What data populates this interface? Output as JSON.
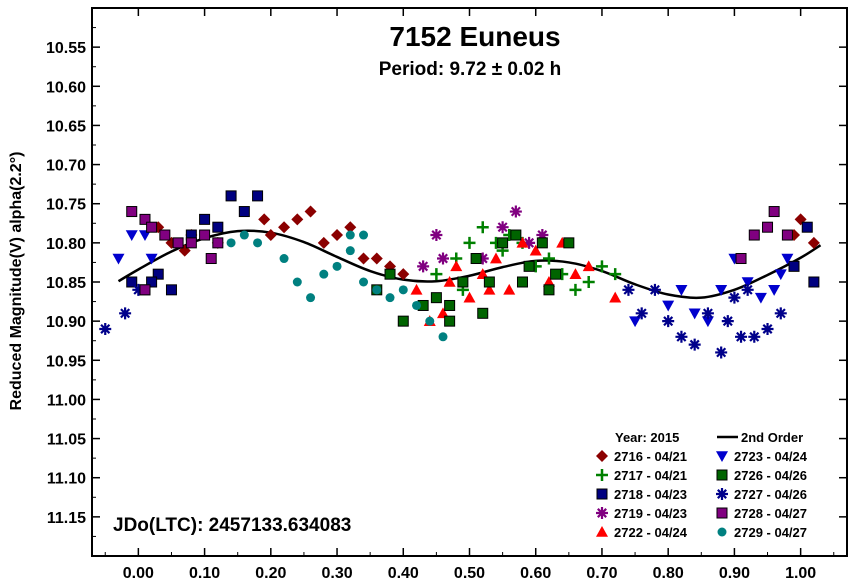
{
  "chart_data": {
    "type": "scatter",
    "title": "7152 Euneus",
    "subtitle": "Period: 9.72 ± 0.02 h",
    "ylabel": "Reduced Magnitude(V) alpha(2.2°)",
    "xlabel": "",
    "annotation": "JDo(LTC): 2457133.634083",
    "xlim": [
      -0.07,
      1.07
    ],
    "ylim": [
      10.5,
      11.2
    ],
    "y_inverted": true,
    "grid": false,
    "x_ticks": [
      "0.00",
      "0.10",
      "0.20",
      "0.30",
      "0.40",
      "0.50",
      "0.60",
      "0.70",
      "0.80",
      "0.90",
      "1.00"
    ],
    "y_ticks": [
      "10.55",
      "10.60",
      "10.65",
      "10.70",
      "10.75",
      "10.80",
      "10.85",
      "10.90",
      "10.95",
      "11.00",
      "11.05",
      "11.10",
      "11.15"
    ],
    "legend_title": "Year: 2015",
    "legend_placement": "bottom-right",
    "fit": {
      "name": "2nd Order",
      "points": [
        [
          -0.03,
          10.849
        ],
        [
          0.0,
          10.834
        ],
        [
          0.05,
          10.811
        ],
        [
          0.1,
          10.794
        ],
        [
          0.15,
          10.785
        ],
        [
          0.2,
          10.787
        ],
        [
          0.25,
          10.799
        ],
        [
          0.3,
          10.818
        ],
        [
          0.35,
          10.836
        ],
        [
          0.4,
          10.847
        ],
        [
          0.45,
          10.849
        ],
        [
          0.5,
          10.842
        ],
        [
          0.55,
          10.831
        ],
        [
          0.6,
          10.823
        ],
        [
          0.65,
          10.825
        ],
        [
          0.7,
          10.836
        ],
        [
          0.75,
          10.853
        ],
        [
          0.8,
          10.866
        ],
        [
          0.85,
          10.87
        ],
        [
          0.9,
          10.86
        ],
        [
          0.95,
          10.841
        ],
        [
          1.0,
          10.819
        ],
        [
          1.03,
          10.803
        ]
      ]
    },
    "series": [
      {
        "name": "2716 - 04/21",
        "marker": "diamond",
        "color": "#8b0000",
        "points": [
          [
            0.03,
            10.78
          ],
          [
            0.05,
            10.8
          ],
          [
            0.07,
            10.81
          ],
          [
            0.08,
            10.79
          ],
          [
            0.12,
            10.8
          ],
          [
            0.19,
            10.77
          ],
          [
            0.2,
            10.79
          ],
          [
            0.22,
            10.78
          ],
          [
            0.24,
            10.77
          ],
          [
            0.26,
            10.76
          ],
          [
            0.28,
            10.8
          ],
          [
            0.3,
            10.79
          ],
          [
            0.32,
            10.78
          ],
          [
            0.34,
            10.82
          ],
          [
            0.36,
            10.82
          ],
          [
            0.38,
            10.83
          ],
          [
            0.4,
            10.84
          ],
          [
            0.99,
            10.79
          ],
          [
            1.0,
            10.77
          ],
          [
            1.02,
            10.8
          ]
        ]
      },
      {
        "name": "2717 - 04/21",
        "marker": "plus",
        "color": "#008000",
        "points": [
          [
            0.45,
            10.84
          ],
          [
            0.48,
            10.82
          ],
          [
            0.5,
            10.8
          ],
          [
            0.52,
            10.78
          ],
          [
            0.54,
            10.8
          ],
          [
            0.56,
            10.79
          ],
          [
            0.58,
            10.8
          ],
          [
            0.6,
            10.83
          ],
          [
            0.62,
            10.82
          ],
          [
            0.64,
            10.84
          ],
          [
            0.66,
            10.86
          ],
          [
            0.68,
            10.85
          ],
          [
            0.7,
            10.83
          ],
          [
            0.72,
            10.84
          ],
          [
            0.49,
            10.86
          ],
          [
            0.55,
            10.81
          ]
        ]
      },
      {
        "name": "2718 - 04/23",
        "marker": "square",
        "color": "#000080",
        "points": [
          [
            -0.01,
            10.85
          ],
          [
            0.01,
            10.86
          ],
          [
            0.03,
            10.84
          ],
          [
            0.05,
            10.86
          ],
          [
            0.08,
            10.79
          ],
          [
            0.1,
            10.77
          ],
          [
            0.12,
            10.78
          ],
          [
            0.14,
            10.74
          ],
          [
            0.16,
            10.76
          ],
          [
            0.18,
            10.74
          ],
          [
            0.02,
            10.85
          ],
          [
            0.99,
            10.83
          ],
          [
            1.01,
            10.78
          ],
          [
            1.02,
            10.85
          ]
        ]
      },
      {
        "name": "2719 - 04/23",
        "marker": "star",
        "color": "#800080",
        "points": [
          [
            0.43,
            10.83
          ],
          [
            0.45,
            10.79
          ],
          [
            0.46,
            10.82
          ],
          [
            0.52,
            10.82
          ],
          [
            0.55,
            10.78
          ],
          [
            0.57,
            10.76
          ],
          [
            0.59,
            10.8
          ],
          [
            0.61,
            10.79
          ]
        ]
      },
      {
        "name": "2722 - 04/24",
        "marker": "triangle",
        "color": "#ff0000",
        "points": [
          [
            0.42,
            10.86
          ],
          [
            0.44,
            10.9
          ],
          [
            0.46,
            10.89
          ],
          [
            0.48,
            10.83
          ],
          [
            0.5,
            10.87
          ],
          [
            0.52,
            10.84
          ],
          [
            0.54,
            10.82
          ],
          [
            0.56,
            10.86
          ],
          [
            0.58,
            10.8
          ],
          [
            0.6,
            10.81
          ],
          [
            0.62,
            10.85
          ],
          [
            0.64,
            10.8
          ],
          [
            0.66,
            10.84
          ],
          [
            0.68,
            10.83
          ],
          [
            0.72,
            10.87
          ],
          [
            0.47,
            10.85
          ],
          [
            0.53,
            10.86
          ]
        ]
      },
      {
        "name": "2723 - 04/24",
        "marker": "triangle-down",
        "color": "#0000cd",
        "points": [
          [
            -0.03,
            10.82
          ],
          [
            -0.01,
            10.79
          ],
          [
            0.01,
            10.79
          ],
          [
            0.02,
            10.82
          ],
          [
            0.75,
            10.9
          ],
          [
            0.8,
            10.88
          ],
          [
            0.82,
            10.86
          ],
          [
            0.84,
            10.89
          ],
          [
            0.86,
            10.9
          ],
          [
            0.88,
            10.86
          ],
          [
            0.9,
            10.82
          ],
          [
            0.92,
            10.85
          ],
          [
            0.94,
            10.87
          ],
          [
            0.96,
            10.86
          ],
          [
            0.97,
            10.84
          ],
          [
            0.98,
            10.82
          ]
        ]
      },
      {
        "name": "2726 - 04/26",
        "marker": "square",
        "color": "#006400",
        "points": [
          [
            0.36,
            10.86
          ],
          [
            0.38,
            10.84
          ],
          [
            0.4,
            10.9
          ],
          [
            0.43,
            10.88
          ],
          [
            0.45,
            10.87
          ],
          [
            0.47,
            10.88
          ],
          [
            0.49,
            10.85
          ],
          [
            0.51,
            10.82
          ],
          [
            0.53,
            10.85
          ],
          [
            0.55,
            10.8
          ],
          [
            0.57,
            10.79
          ],
          [
            0.59,
            10.83
          ],
          [
            0.61,
            10.8
          ],
          [
            0.63,
            10.84
          ],
          [
            0.65,
            10.8
          ],
          [
            0.47,
            10.9
          ],
          [
            0.52,
            10.89
          ],
          [
            0.58,
            10.85
          ],
          [
            0.62,
            10.86
          ]
        ]
      },
      {
        "name": "2727 - 04/26",
        "marker": "star",
        "color": "#00008b",
        "points": [
          [
            -0.05,
            10.91
          ],
          [
            -0.02,
            10.89
          ],
          [
            0.0,
            10.86
          ],
          [
            0.74,
            10.86
          ],
          [
            0.76,
            10.89
          ],
          [
            0.78,
            10.86
          ],
          [
            0.8,
            10.9
          ],
          [
            0.82,
            10.92
          ],
          [
            0.84,
            10.93
          ],
          [
            0.86,
            10.89
          ],
          [
            0.88,
            10.94
          ],
          [
            0.89,
            10.9
          ],
          [
            0.91,
            10.92
          ],
          [
            0.93,
            10.92
          ],
          [
            0.95,
            10.91
          ],
          [
            0.97,
            10.89
          ],
          [
            0.92,
            10.86
          ],
          [
            0.9,
            10.87
          ]
        ]
      },
      {
        "name": "2728 - 04/27",
        "marker": "square",
        "color": "#800080",
        "points": [
          [
            -0.01,
            10.76
          ],
          [
            0.01,
            10.77
          ],
          [
            0.02,
            10.78
          ],
          [
            0.04,
            10.79
          ],
          [
            0.06,
            10.8
          ],
          [
            0.08,
            10.8
          ],
          [
            0.1,
            10.79
          ],
          [
            0.11,
            10.82
          ],
          [
            0.12,
            10.8
          ],
          [
            0.91,
            10.82
          ],
          [
            0.93,
            10.79
          ],
          [
            0.95,
            10.78
          ],
          [
            0.96,
            10.76
          ],
          [
            0.98,
            10.79
          ],
          [
            0.01,
            10.86
          ]
        ]
      },
      {
        "name": "2729 - 04/27",
        "marker": "circle",
        "color": "#008080",
        "points": [
          [
            0.14,
            10.8
          ],
          [
            0.16,
            10.79
          ],
          [
            0.18,
            10.8
          ],
          [
            0.22,
            10.82
          ],
          [
            0.24,
            10.85
          ],
          [
            0.26,
            10.87
          ],
          [
            0.28,
            10.84
          ],
          [
            0.3,
            10.83
          ],
          [
            0.32,
            10.81
          ],
          [
            0.34,
            10.85
          ],
          [
            0.36,
            10.86
          ],
          [
            0.38,
            10.87
          ],
          [
            0.4,
            10.86
          ],
          [
            0.42,
            10.88
          ],
          [
            0.44,
            10.9
          ],
          [
            0.46,
            10.92
          ],
          [
            0.32,
            10.79
          ],
          [
            0.34,
            10.79
          ]
        ]
      }
    ]
  }
}
